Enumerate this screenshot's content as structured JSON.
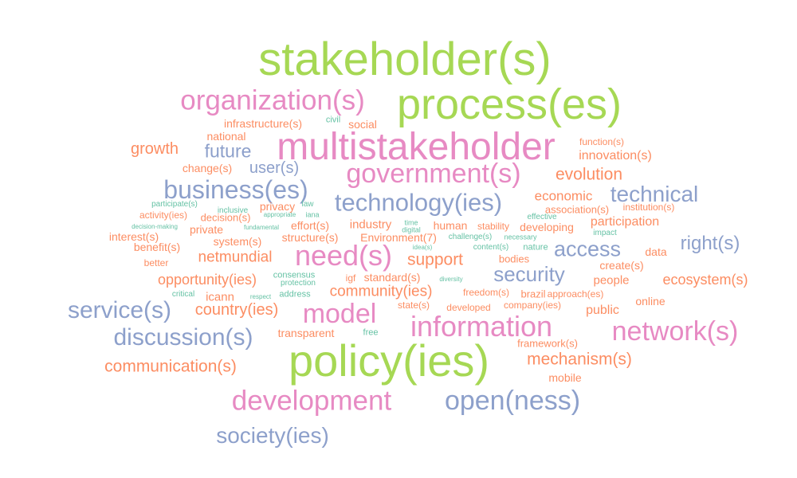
{
  "colors": {
    "green": "#a6d854",
    "pink": "#e78ac3",
    "blue": "#8da0cb",
    "orange": "#fc8d62",
    "teal": "#66c2a5"
  },
  "words": [
    {
      "text": "stakeholder(s)",
      "color": "green"
    },
    {
      "text": "process(es)",
      "color": "green"
    },
    {
      "text": "organization(s)",
      "color": "pink"
    },
    {
      "text": "multistakeholder",
      "color": "pink"
    },
    {
      "text": "government(s)",
      "color": "pink"
    },
    {
      "text": "business(es)",
      "color": "blue"
    },
    {
      "text": "technology(ies)",
      "color": "blue"
    },
    {
      "text": "technical",
      "color": "blue"
    },
    {
      "text": "future",
      "color": "blue"
    },
    {
      "text": "user(s)",
      "color": "blue"
    },
    {
      "text": "growth",
      "color": "orange"
    },
    {
      "text": "infrastructure(s)",
      "color": "orange"
    },
    {
      "text": "national",
      "color": "orange"
    },
    {
      "text": "social",
      "color": "orange"
    },
    {
      "text": "civil",
      "color": "teal"
    },
    {
      "text": "change(s)",
      "color": "orange"
    },
    {
      "text": "function(s)",
      "color": "orange"
    },
    {
      "text": "innovation(s)",
      "color": "orange"
    },
    {
      "text": "evolution",
      "color": "orange"
    },
    {
      "text": "economic",
      "color": "orange"
    },
    {
      "text": "association(s)",
      "color": "orange"
    },
    {
      "text": "institution(s)",
      "color": "orange"
    },
    {
      "text": "effective",
      "color": "teal"
    },
    {
      "text": "participation",
      "color": "orange"
    },
    {
      "text": "impact",
      "color": "teal"
    },
    {
      "text": "participate(s)",
      "color": "teal"
    },
    {
      "text": "inclusive",
      "color": "teal"
    },
    {
      "text": "activity(ies)",
      "color": "orange"
    },
    {
      "text": "decision(s)",
      "color": "orange"
    },
    {
      "text": "appropriate",
      "color": "teal"
    },
    {
      "text": "iana",
      "color": "teal"
    },
    {
      "text": "privacy",
      "color": "orange"
    },
    {
      "text": "law",
      "color": "teal"
    },
    {
      "text": "decision-making",
      "color": "teal"
    },
    {
      "text": "private",
      "color": "orange"
    },
    {
      "text": "fundamental",
      "color": "teal"
    },
    {
      "text": "effort(s)",
      "color": "orange"
    },
    {
      "text": "industry",
      "color": "orange"
    },
    {
      "text": "time",
      "color": "teal"
    },
    {
      "text": "digital",
      "color": "teal"
    },
    {
      "text": "human",
      "color": "orange"
    },
    {
      "text": "stability",
      "color": "orange"
    },
    {
      "text": "developing",
      "color": "orange"
    },
    {
      "text": "interest(s)",
      "color": "orange"
    },
    {
      "text": "benefit(s)",
      "color": "orange"
    },
    {
      "text": "system(s)",
      "color": "orange"
    },
    {
      "text": "structure(s)",
      "color": "orange"
    },
    {
      "text": "Environment(7)",
      "color": "orange"
    },
    {
      "text": "challenge(s)",
      "color": "teal"
    },
    {
      "text": "necessary",
      "color": "teal"
    },
    {
      "text": "idea(s)",
      "color": "teal"
    },
    {
      "text": "content(s)",
      "color": "teal"
    },
    {
      "text": "nature",
      "color": "teal"
    },
    {
      "text": "access",
      "color": "blue"
    },
    {
      "text": "data",
      "color": "orange"
    },
    {
      "text": "right(s)",
      "color": "blue"
    },
    {
      "text": "better",
      "color": "orange"
    },
    {
      "text": "netmundial",
      "color": "orange"
    },
    {
      "text": "need(s)",
      "color": "pink"
    },
    {
      "text": "support",
      "color": "orange"
    },
    {
      "text": "bodies",
      "color": "orange"
    },
    {
      "text": "create(s)",
      "color": "orange"
    },
    {
      "text": "opportunity(ies)",
      "color": "orange"
    },
    {
      "text": "consensus",
      "color": "teal"
    },
    {
      "text": "igf",
      "color": "orange"
    },
    {
      "text": "standard(s)",
      "color": "orange"
    },
    {
      "text": "diversity",
      "color": "teal"
    },
    {
      "text": "security",
      "color": "blue"
    },
    {
      "text": "people",
      "color": "orange"
    },
    {
      "text": "ecosystem(s)",
      "color": "orange"
    },
    {
      "text": "protection",
      "color": "teal"
    },
    {
      "text": "community(ies)",
      "color": "orange"
    },
    {
      "text": "freedom(s)",
      "color": "orange"
    },
    {
      "text": "brazil",
      "color": "orange"
    },
    {
      "text": "approach(es)",
      "color": "orange"
    },
    {
      "text": "critical",
      "color": "teal"
    },
    {
      "text": "icann",
      "color": "orange"
    },
    {
      "text": "respect",
      "color": "teal"
    },
    {
      "text": "address",
      "color": "teal"
    },
    {
      "text": "state(s)",
      "color": "orange"
    },
    {
      "text": "developed",
      "color": "orange"
    },
    {
      "text": "company(ies)",
      "color": "orange"
    },
    {
      "text": "online",
      "color": "orange"
    },
    {
      "text": "service(s)",
      "color": "blue"
    },
    {
      "text": "country(ies)",
      "color": "orange"
    },
    {
      "text": "model",
      "color": "pink"
    },
    {
      "text": "information",
      "color": "pink"
    },
    {
      "text": "public",
      "color": "orange"
    },
    {
      "text": "network(s)",
      "color": "pink"
    },
    {
      "text": "transparent",
      "color": "orange"
    },
    {
      "text": "free",
      "color": "teal"
    },
    {
      "text": "discussion(s)",
      "color": "blue"
    },
    {
      "text": "framework(s)",
      "color": "orange"
    },
    {
      "text": "policy(ies)",
      "color": "green"
    },
    {
      "text": "mechanism(s)",
      "color": "orange"
    },
    {
      "text": "communication(s)",
      "color": "orange"
    },
    {
      "text": "mobile",
      "color": "orange"
    },
    {
      "text": "development",
      "color": "pink"
    },
    {
      "text": "open(ness)",
      "color": "blue"
    },
    {
      "text": "society(ies)",
      "color": "blue"
    }
  ]
}
